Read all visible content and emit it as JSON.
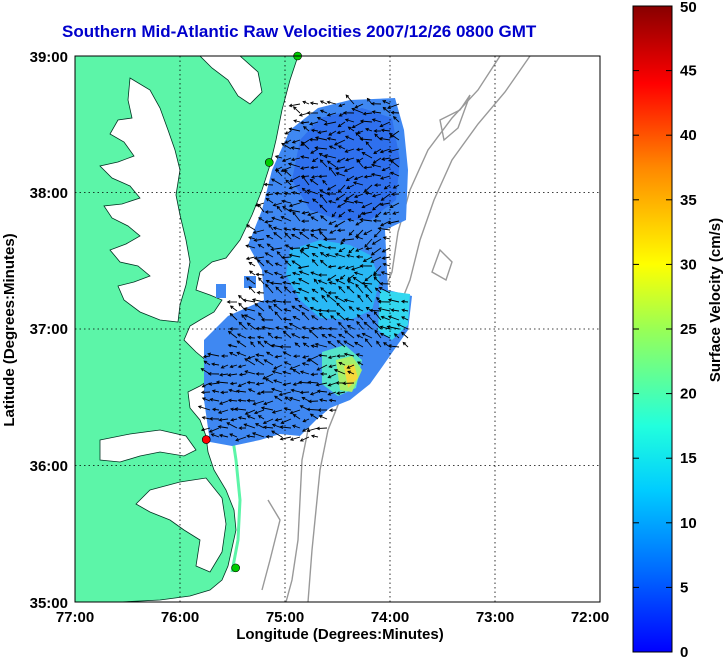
{
  "title": "Southern Mid-Atlantic Raw Velocities 2007/12/26 0800 GMT",
  "xlabel": "Longitude (Degrees:Minutes)",
  "ylabel": "Latitude (Degrees:Minutes)",
  "x_ticks": [
    "77:00",
    "76:00",
    "75:00",
    "74:00",
    "73:00",
    "72:00"
  ],
  "y_ticks": [
    "39:00",
    "38:00",
    "37:00",
    "36:00",
    "35:00"
  ],
  "colorbar": {
    "label": "Surface Velocity (cm/s)",
    "ticks": [
      "0",
      "5",
      "10",
      "15",
      "20",
      "25",
      "30",
      "35",
      "40",
      "45",
      "50"
    ],
    "range": [
      0,
      50
    ]
  },
  "colors": {
    "land": "#5cf5a8",
    "title": "#0000cc",
    "station_ok": "#00cc00",
    "station_alert": "#ff0000"
  },
  "map_extent": {
    "lon": [
      -77,
      -72
    ],
    "lat": [
      35,
      39
    ]
  },
  "stations": [
    {
      "lon": -74.88,
      "lat": 39.0,
      "status": "ok"
    },
    {
      "lon": -75.15,
      "lat": 38.22,
      "status": "ok"
    },
    {
      "lon": -75.75,
      "lat": 36.19,
      "status": "alert"
    },
    {
      "lon": -75.47,
      "lat": 35.25,
      "status": "ok"
    }
  ]
}
